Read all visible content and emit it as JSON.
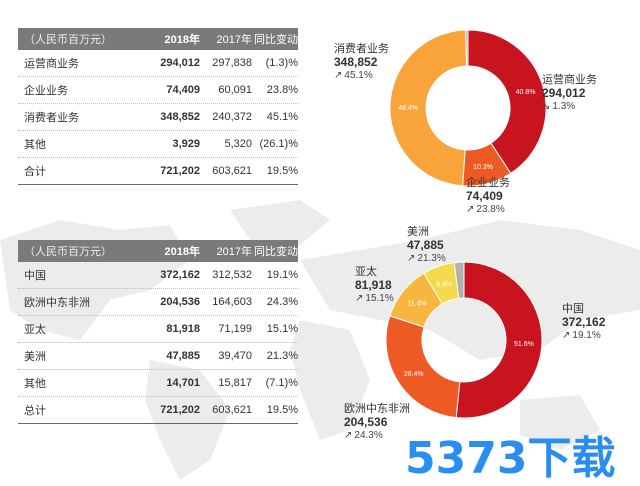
{
  "table1": {
    "header": [
      "（人民币百万元）",
      "2018年",
      "2017年",
      "同比变动"
    ],
    "rows": [
      [
        "运营商业务",
        "294,012",
        "297,838",
        "(1.3)%"
      ],
      [
        "企业业务",
        "74,409",
        "60,091",
        "23.8%"
      ],
      [
        "消费者业务",
        "348,852",
        "240,372",
        "45.1%"
      ],
      [
        "其他",
        "3,929",
        "5,320",
        "(26.1)%"
      ],
      [
        "合计",
        "721,202",
        "603,621",
        "19.5%"
      ]
    ]
  },
  "table2": {
    "header": [
      "（人民币百万元）",
      "2018年",
      "2017年",
      "同比变动"
    ],
    "rows": [
      [
        "中国",
        "372,162",
        "312,532",
        "19.1%"
      ],
      [
        "欧洲中东非洲",
        "204,536",
        "164,603",
        "24.3%"
      ],
      [
        "亚太",
        "81,918",
        "71,199",
        "15.1%"
      ],
      [
        "美洲",
        "47,885",
        "39,470",
        "21.3%"
      ],
      [
        "其他",
        "14,701",
        "15,817",
        "(7.1)%"
      ],
      [
        "总计",
        "721,202",
        "603,621",
        "19.5%"
      ]
    ]
  },
  "chart_data": [
    {
      "type": "pie",
      "categories": [
        "运营商业务",
        "企业业务",
        "消费者业务",
        "其他"
      ],
      "values": [
        40.8,
        10.3,
        48.4,
        0.5
      ],
      "slice_labels": [
        "40.8%",
        "10.3%",
        "48.4%",
        ""
      ],
      "colors": [
        "#c8141e",
        "#ee5a24",
        "#f9a43a",
        "#b0b0b0"
      ],
      "annotations": [
        {
          "name": "运营商业务",
          "value": "294,012",
          "growth": "1.3%",
          "arrow": "↘"
        },
        {
          "name": "企业业务",
          "value": "74,409",
          "growth": "23.8%",
          "arrow": "↗"
        },
        {
          "name": "消费者业务",
          "value": "348,852",
          "growth": "45.1%",
          "arrow": "↗"
        }
      ]
    },
    {
      "type": "pie",
      "categories": [
        "中国",
        "欧洲中东非洲",
        "亚太",
        "美洲",
        "其他"
      ],
      "values": [
        51.6,
        28.4,
        11.4,
        6.6,
        2.0
      ],
      "slice_labels": [
        "51.6%",
        "28.4%",
        "11.4%",
        "6.6%",
        ""
      ],
      "colors": [
        "#c8141e",
        "#ee5a24",
        "#f7b73f",
        "#f5d94a",
        "#b0b0b0"
      ],
      "annotations": [
        {
          "name": "中国",
          "value": "372,162",
          "growth": "19.1%",
          "arrow": "↗"
        },
        {
          "name": "欧洲中东非洲",
          "value": "204,536",
          "growth": "24.3%",
          "arrow": "↗"
        },
        {
          "name": "亚太",
          "value": "81,918",
          "growth": "15.1%",
          "arrow": "↗"
        },
        {
          "name": "美洲",
          "value": "47,885",
          "growth": "21.3%",
          "arrow": "↗"
        }
      ]
    }
  ],
  "watermark": "5373下载"
}
